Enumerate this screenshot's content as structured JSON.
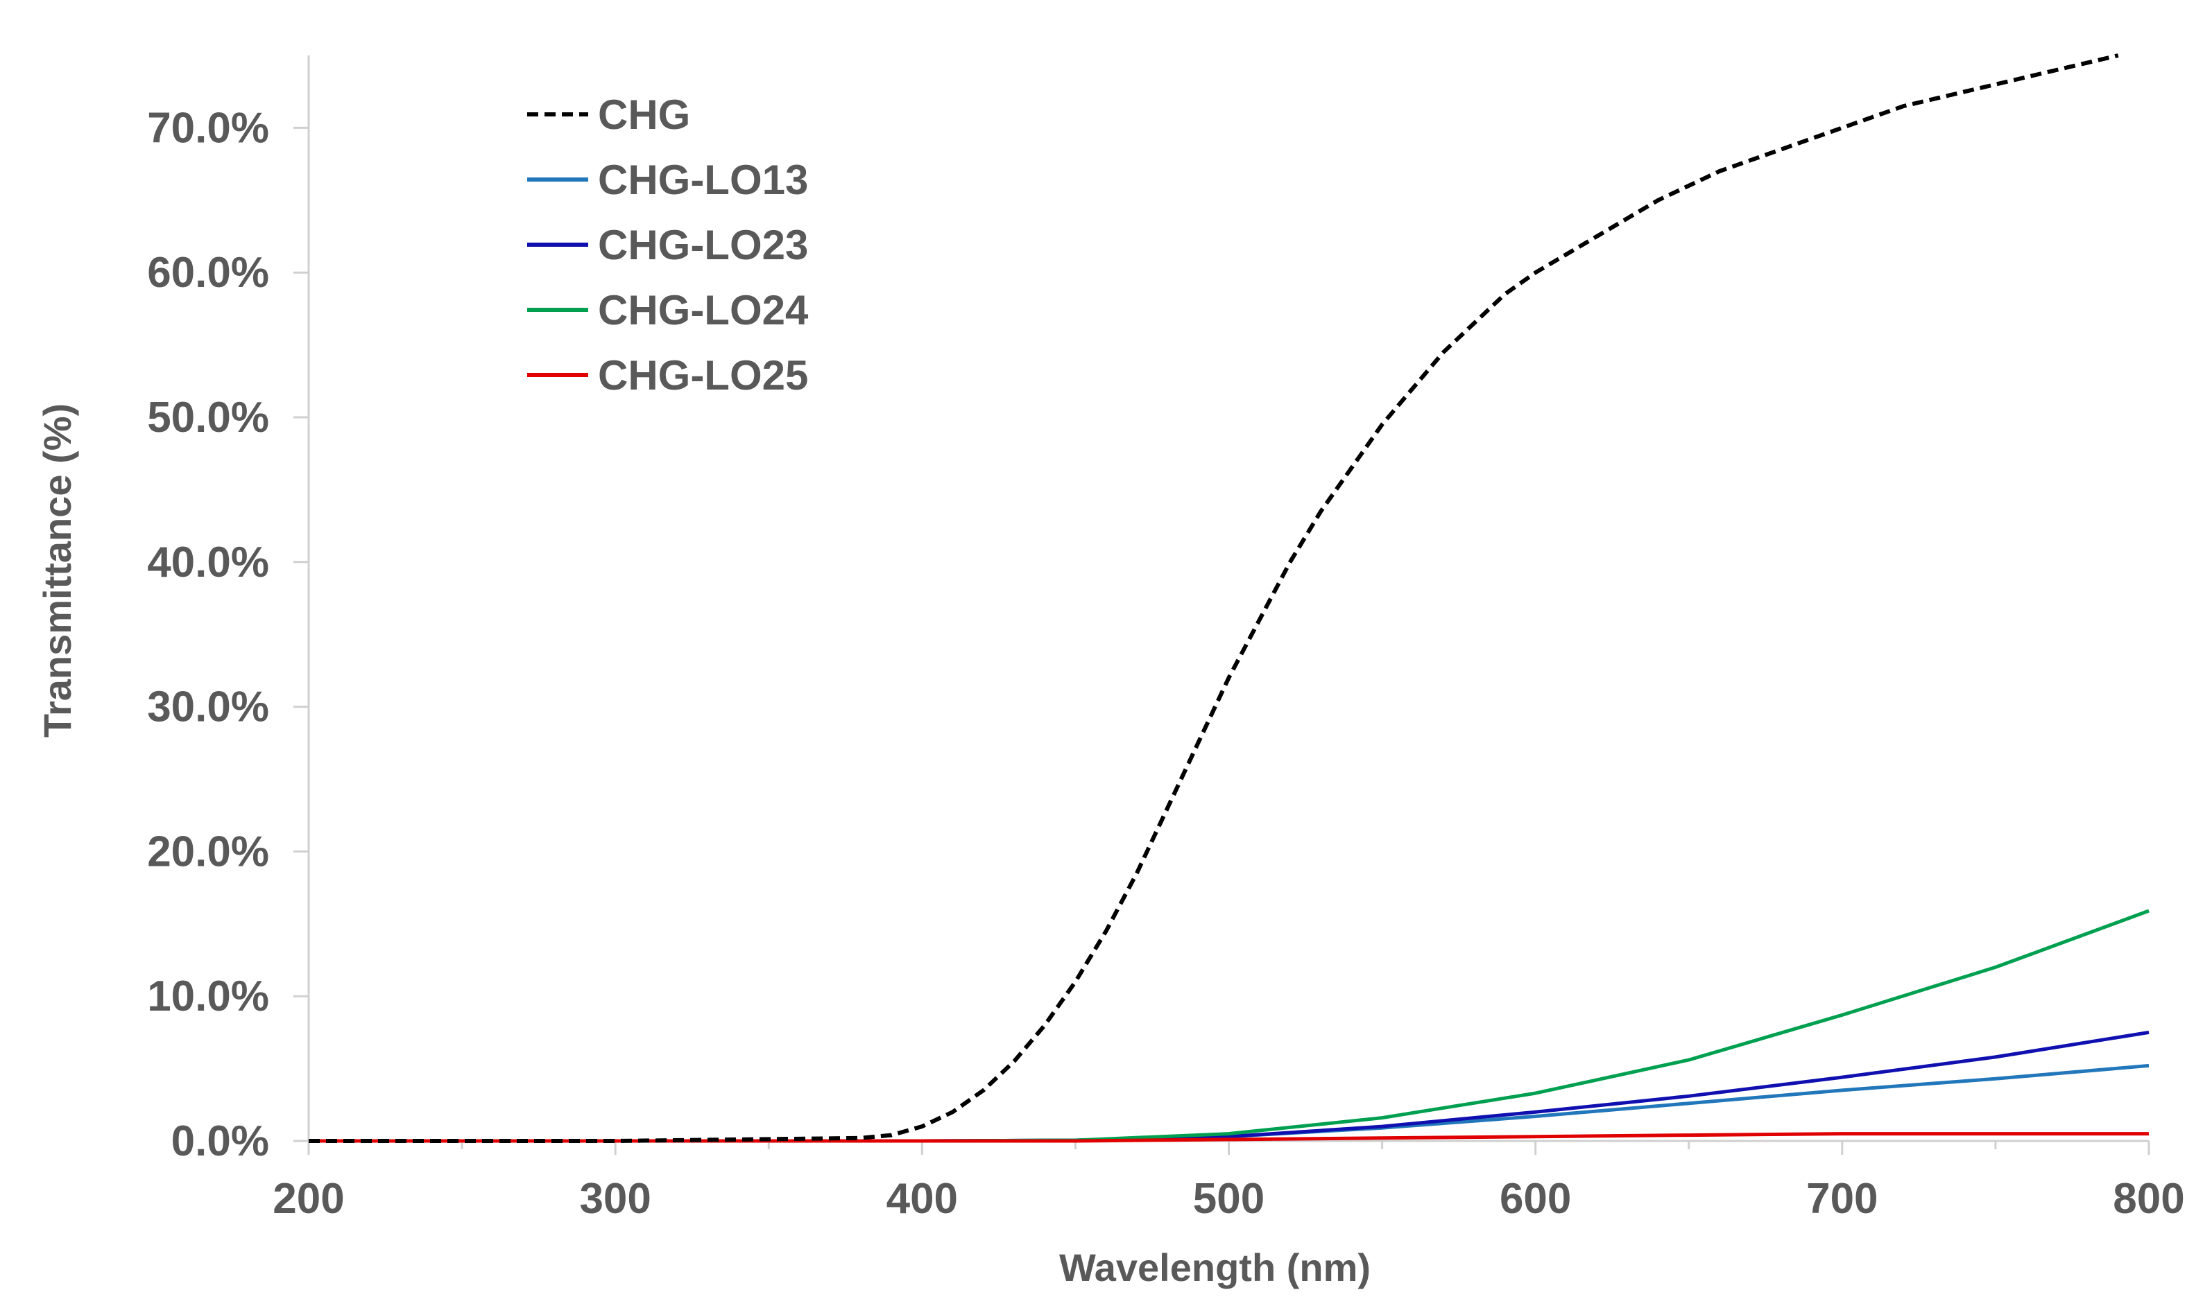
{
  "chart_data": {
    "type": "line",
    "title": "",
    "xlabel": "Wavelength (nm)",
    "ylabel": "Transmittance (%)",
    "xlim": [
      200,
      800
    ],
    "ylim": [
      0,
      75
    ],
    "x_ticks": [
      200,
      300,
      400,
      500,
      600,
      700,
      800
    ],
    "y_ticks": [
      0,
      10,
      20,
      30,
      40,
      50,
      60,
      70
    ],
    "x_tick_labels": [
      "200",
      "300",
      "400",
      "500",
      "600",
      "700",
      "800"
    ],
    "y_tick_labels": [
      "0.0%",
      "10.0%",
      "20.0%",
      "30.0%",
      "40.0%",
      "50.0%",
      "60.0%",
      "70.0%"
    ],
    "grid": false,
    "legend_position": "top-left",
    "series": [
      {
        "name": "CHG",
        "color": "#000000",
        "dash": "dashed",
        "x": [
          200,
          300,
          380,
          390,
          400,
          410,
          420,
          430,
          440,
          450,
          460,
          470,
          480,
          490,
          500,
          510,
          520,
          530,
          540,
          550,
          560,
          570,
          580,
          590,
          600,
          620,
          640,
          660,
          680,
          700,
          720,
          740,
          760,
          780,
          790
        ],
        "y": [
          0.0,
          0.0,
          0.2,
          0.4,
          1.0,
          2.0,
          3.5,
          5.5,
          8.0,
          11.0,
          14.5,
          18.5,
          23.0,
          27.5,
          32.0,
          36.0,
          40.0,
          43.5,
          46.5,
          49.5,
          52.0,
          54.5,
          56.5,
          58.5,
          60.0,
          62.5,
          65.0,
          67.0,
          68.5,
          70.0,
          71.5,
          72.5,
          73.5,
          74.5,
          75.0
        ]
      },
      {
        "name": "CHG-LO13",
        "color": "#2277bb",
        "dash": "solid",
        "x": [
          200,
          300,
          400,
          450,
          500,
          550,
          600,
          650,
          700,
          750,
          800
        ],
        "y": [
          0.0,
          0.0,
          0.0,
          0.05,
          0.3,
          0.9,
          1.7,
          2.6,
          3.5,
          4.3,
          5.2
        ]
      },
      {
        "name": "CHG-LO23",
        "color": "#1010b0",
        "dash": "solid",
        "x": [
          200,
          300,
          400,
          450,
          500,
          550,
          600,
          650,
          700,
          750,
          800
        ],
        "y": [
          0.0,
          0.0,
          0.0,
          0.05,
          0.3,
          1.0,
          2.0,
          3.1,
          4.4,
          5.8,
          7.5
        ]
      },
      {
        "name": "CHG-LO24",
        "color": "#00a050",
        "dash": "solid",
        "x": [
          200,
          300,
          400,
          450,
          500,
          550,
          600,
          650,
          700,
          750,
          800
        ],
        "y": [
          0.0,
          0.0,
          0.0,
          0.05,
          0.5,
          1.6,
          3.3,
          5.6,
          8.7,
          12.0,
          15.9
        ]
      },
      {
        "name": "CHG-LO25",
        "color": "#e00000",
        "dash": "solid",
        "x": [
          200,
          300,
          400,
          450,
          500,
          550,
          600,
          650,
          700,
          750,
          800
        ],
        "y": [
          0.0,
          0.0,
          0.0,
          0.0,
          0.1,
          0.2,
          0.3,
          0.4,
          0.5,
          0.5,
          0.5
        ]
      }
    ]
  }
}
